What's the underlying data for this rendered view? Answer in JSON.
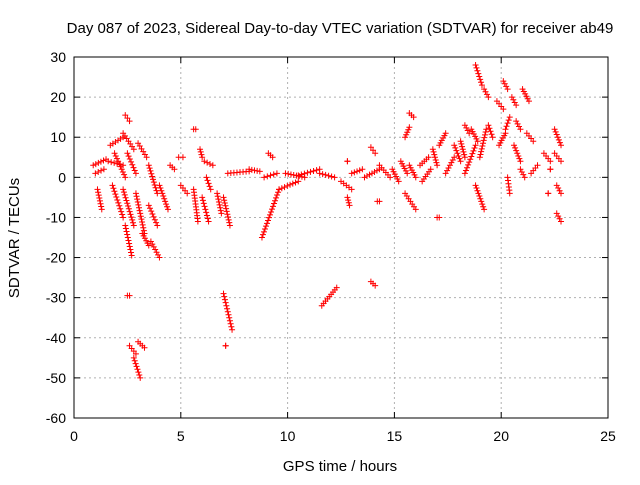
{
  "chart_data": {
    "type": "scatter",
    "title": "Day 087 of 2023, Sidereal Day-to-day VTEC variation (SDTVAR) for receiver ab49",
    "xlabel": "GPS time / hours",
    "ylabel": "SDTVAR / TECUs",
    "xlim": [
      0,
      25
    ],
    "ylim": [
      -60,
      30
    ],
    "xticks": [
      0,
      5,
      10,
      15,
      20,
      25
    ],
    "yticks": [
      -60,
      -50,
      -40,
      -30,
      -20,
      -10,
      0,
      10,
      20,
      30
    ],
    "grid": true,
    "marker": "+",
    "series_color": "#ff0000",
    "segments": [
      [
        [
          0.9,
          3
        ],
        [
          1.5,
          4.5
        ]
      ],
      [
        [
          1.0,
          1
        ],
        [
          1.4,
          2
        ]
      ],
      [
        [
          1.1,
          -3
        ],
        [
          1.3,
          -8
        ]
      ],
      [
        [
          1.6,
          4
        ],
        [
          2.3,
          3
        ]
      ],
      [
        [
          1.7,
          8
        ],
        [
          2.3,
          10
        ]
      ],
      [
        [
          1.8,
          -2
        ],
        [
          2.3,
          -10
        ]
      ],
      [
        [
          1.9,
          6
        ],
        [
          2.4,
          0
        ]
      ],
      [
        [
          2.4,
          15.5
        ],
        [
          2.6,
          14
        ]
      ],
      [
        [
          2.3,
          11
        ],
        [
          2.8,
          7
        ]
      ],
      [
        [
          2.5,
          6
        ],
        [
          2.9,
          1
        ]
      ],
      [
        [
          2.3,
          -3
        ],
        [
          2.8,
          -12
        ]
      ],
      [
        [
          2.4,
          -12
        ],
        [
          2.7,
          -19.5
        ]
      ],
      [
        [
          2.5,
          -29.5
        ],
        [
          2.6,
          -29.5
        ]
      ],
      [
        [
          2.6,
          -42
        ],
        [
          2.9,
          -44
        ]
      ],
      [
        [
          2.8,
          -45
        ],
        [
          3.1,
          -50
        ]
      ],
      [
        [
          3.0,
          -41
        ],
        [
          3.3,
          -42.5
        ]
      ],
      [
        [
          3.0,
          8.5
        ],
        [
          3.4,
          5
        ]
      ],
      [
        [
          2.9,
          -4
        ],
        [
          3.3,
          -14
        ]
      ],
      [
        [
          3.2,
          -14
        ],
        [
          3.5,
          -17
        ]
      ],
      [
        [
          3.5,
          3
        ],
        [
          3.9,
          -4
        ]
      ],
      [
        [
          3.5,
          -7
        ],
        [
          3.9,
          -12
        ]
      ],
      [
        [
          3.6,
          -16
        ],
        [
          4.0,
          -20
        ]
      ],
      [
        [
          4.0,
          -2
        ],
        [
          4.4,
          -8
        ]
      ],
      [
        [
          4.5,
          3
        ],
        [
          4.7,
          2
        ]
      ],
      [
        [
          4.9,
          5
        ],
        [
          5.1,
          5
        ]
      ],
      [
        [
          5.0,
          -2
        ],
        [
          5.3,
          -4
        ]
      ],
      [
        [
          5.6,
          12
        ],
        [
          5.7,
          12
        ]
      ],
      [
        [
          5.6,
          -3
        ],
        [
          5.8,
          -11
        ]
      ],
      [
        [
          5.9,
          7
        ],
        [
          6.0,
          5
        ]
      ],
      [
        [
          6.0,
          -5
        ],
        [
          6.3,
          -11
        ]
      ],
      [
        [
          6.1,
          4
        ],
        [
          6.5,
          3
        ]
      ],
      [
        [
          6.2,
          0
        ],
        [
          6.4,
          -3
        ]
      ],
      [
        [
          6.7,
          -4
        ],
        [
          6.9,
          -9
        ]
      ],
      [
        [
          7.0,
          -5
        ],
        [
          7.3,
          -12
        ]
      ],
      [
        [
          7.0,
          -29
        ],
        [
          7.4,
          -38
        ]
      ],
      [
        [
          7.1,
          -42
        ],
        [
          7.1,
          -42
        ]
      ],
      [
        [
          7.2,
          1
        ],
        [
          8.2,
          1.5
        ]
      ],
      [
        [
          8.2,
          2
        ],
        [
          8.7,
          1.5
        ]
      ],
      [
        [
          8.8,
          -15
        ],
        [
          9.6,
          -3
        ]
      ],
      [
        [
          9.6,
          -3
        ],
        [
          10.5,
          -1
        ]
      ],
      [
        [
          8.9,
          0
        ],
        [
          9.5,
          1
        ]
      ],
      [
        [
          9.1,
          6
        ],
        [
          9.3,
          5
        ]
      ],
      [
        [
          9.9,
          1
        ],
        [
          10.8,
          0
        ]
      ],
      [
        [
          10.5,
          0.5
        ],
        [
          11.5,
          2
        ]
      ],
      [
        [
          11.5,
          1
        ],
        [
          12.2,
          0
        ]
      ],
      [
        [
          11.6,
          -32
        ],
        [
          12.3,
          -27.5
        ]
      ],
      [
        [
          12.5,
          -1
        ],
        [
          13.0,
          -3
        ]
      ],
      [
        [
          12.8,
          4
        ],
        [
          12.8,
          4
        ]
      ],
      [
        [
          12.8,
          -5
        ],
        [
          12.9,
          -7
        ]
      ],
      [
        [
          13.0,
          1
        ],
        [
          13.5,
          2
        ]
      ],
      [
        [
          13.6,
          0
        ],
        [
          14.3,
          2
        ]
      ],
      [
        [
          13.9,
          -26
        ],
        [
          14.1,
          -27
        ]
      ],
      [
        [
          13.9,
          7.5
        ],
        [
          14.1,
          6
        ]
      ],
      [
        [
          14.2,
          -6
        ],
        [
          14.3,
          -6
        ]
      ],
      [
        [
          14.3,
          3
        ],
        [
          14.8,
          0
        ]
      ],
      [
        [
          14.9,
          2
        ],
        [
          15.2,
          -1
        ]
      ],
      [
        [
          15.3,
          4
        ],
        [
          15.6,
          1
        ]
      ],
      [
        [
          15.5,
          10
        ],
        [
          15.7,
          12.5
        ]
      ],
      [
        [
          15.7,
          16
        ],
        [
          15.9,
          15
        ]
      ],
      [
        [
          15.7,
          3
        ],
        [
          16.0,
          0
        ]
      ],
      [
        [
          15.5,
          -4
        ],
        [
          16.0,
          -8
        ]
      ],
      [
        [
          16.2,
          3
        ],
        [
          16.6,
          5
        ]
      ],
      [
        [
          16.3,
          -1
        ],
        [
          16.7,
          2
        ]
      ],
      [
        [
          16.8,
          7
        ],
        [
          17.0,
          3
        ]
      ],
      [
        [
          17.0,
          -10
        ],
        [
          17.1,
          -10
        ]
      ],
      [
        [
          17.1,
          8
        ],
        [
          17.4,
          11
        ]
      ],
      [
        [
          17.4,
          1
        ],
        [
          17.8,
          5
        ]
      ],
      [
        [
          17.8,
          8
        ],
        [
          18.1,
          4
        ]
      ],
      [
        [
          18.1,
          9
        ],
        [
          18.3,
          5
        ]
      ],
      [
        [
          18.3,
          13
        ],
        [
          18.5,
          11
        ]
      ],
      [
        [
          18.3,
          1
        ],
        [
          18.8,
          8
        ]
      ],
      [
        [
          18.6,
          12
        ],
        [
          18.9,
          9
        ]
      ],
      [
        [
          18.8,
          28
        ],
        [
          19.1,
          23
        ]
      ],
      [
        [
          18.8,
          -2
        ],
        [
          19.2,
          -8
        ]
      ],
      [
        [
          19.0,
          5
        ],
        [
          19.3,
          12
        ]
      ],
      [
        [
          19.2,
          22
        ],
        [
          19.4,
          20
        ]
      ],
      [
        [
          19.4,
          13
        ],
        [
          19.6,
          10
        ]
      ],
      [
        [
          19.8,
          19
        ],
        [
          20.1,
          17
        ]
      ],
      [
        [
          19.9,
          8
        ],
        [
          20.2,
          11
        ]
      ],
      [
        [
          20.1,
          24
        ],
        [
          20.3,
          22
        ]
      ],
      [
        [
          20.2,
          12
        ],
        [
          20.4,
          15
        ]
      ],
      [
        [
          20.3,
          0
        ],
        [
          20.4,
          -4
        ]
      ],
      [
        [
          20.5,
          20
        ],
        [
          20.7,
          18
        ]
      ],
      [
        [
          20.6,
          8
        ],
        [
          20.9,
          4
        ]
      ],
      [
        [
          20.7,
          14
        ],
        [
          20.9,
          12
        ]
      ],
      [
        [
          20.9,
          2
        ],
        [
          21.1,
          0
        ]
      ],
      [
        [
          21.0,
          22
        ],
        [
          21.3,
          19
        ]
      ],
      [
        [
          21.2,
          11
        ],
        [
          21.5,
          9
        ]
      ],
      [
        [
          21.4,
          1
        ],
        [
          21.7,
          3
        ]
      ],
      [
        [
          22.0,
          6
        ],
        [
          22.3,
          4
        ]
      ],
      [
        [
          22.3,
          2
        ],
        [
          22.3,
          2
        ]
      ],
      [
        [
          22.2,
          -4
        ],
        [
          22.2,
          -4
        ]
      ],
      [
        [
          22.5,
          12
        ],
        [
          22.8,
          8
        ]
      ],
      [
        [
          22.5,
          6
        ],
        [
          22.8,
          4
        ]
      ],
      [
        [
          22.6,
          -2
        ],
        [
          22.8,
          -4
        ]
      ],
      [
        [
          22.6,
          -9
        ],
        [
          22.8,
          -11
        ]
      ]
    ]
  }
}
